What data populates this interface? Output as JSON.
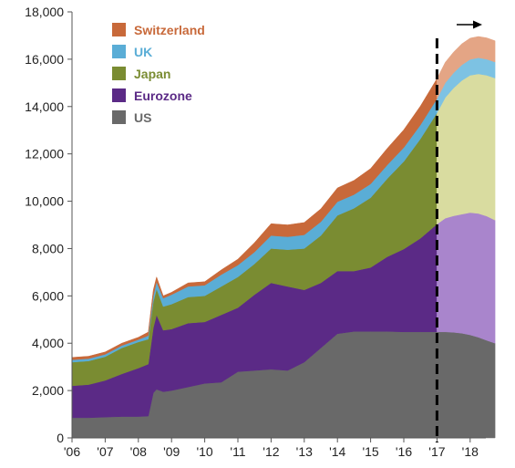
{
  "chart_data": {
    "type": "area",
    "stacked": true,
    "ylim": [
      0,
      18000
    ],
    "yticks": [
      0,
      2000,
      4000,
      6000,
      8000,
      10000,
      12000,
      14000,
      16000,
      18000
    ],
    "ytick_labels": [
      "0",
      "2,000",
      "4,000",
      "6,000",
      "8,000",
      "10,000",
      "12,000",
      "14,000",
      "16,000",
      "18,000"
    ],
    "xlim": [
      2006.0,
      2018.75
    ],
    "xticks": [
      2006,
      2007,
      2008,
      2009,
      2010,
      2011,
      2012,
      2013,
      2014,
      2015,
      2016,
      2017,
      2018
    ],
    "xtick_labels": [
      "'06",
      "'07",
      "'08",
      "'09",
      "'10",
      "'11",
      "'12",
      "'13",
      "'14",
      "'15",
      "'16",
      "'17",
      "'18"
    ],
    "grid": false,
    "legend_position": "top-left",
    "forecast_start": 2017.0,
    "forecast_arrow": true,
    "x": [
      2006.0,
      2006.5,
      2007.0,
      2007.5,
      2008.0,
      2008.3,
      2008.45,
      2008.55,
      2008.75,
      2009.0,
      2009.5,
      2010.0,
      2010.5,
      2011.0,
      2011.5,
      2012.0,
      2012.5,
      2013.0,
      2013.5,
      2014.0,
      2014.5,
      2015.0,
      2015.5,
      2016.0,
      2016.5,
      2017.0,
      2017.25,
      2017.5,
      2017.75,
      2018.0,
      2018.25,
      2018.5,
      2018.75
    ],
    "series": [
      {
        "name": "US",
        "color_actual": "#696969",
        "color_forecast": "#696969",
        "values": [
          850,
          850,
          880,
          900,
          900,
          920,
          1900,
          2050,
          1950,
          2000,
          2150,
          2300,
          2350,
          2800,
          2850,
          2900,
          2850,
          3200,
          3800,
          4400,
          4500,
          4500,
          4500,
          4480,
          4480,
          4480,
          4480,
          4460,
          4420,
          4350,
          4250,
          4120,
          4000
        ]
      },
      {
        "name": "Eurozone",
        "color_actual": "#5b2a86",
        "color_forecast": "#a985cc",
        "values": [
          1350,
          1400,
          1550,
          1800,
          2050,
          2200,
          2750,
          3150,
          2600,
          2600,
          2700,
          2600,
          2850,
          2700,
          3200,
          3650,
          3550,
          3050,
          2750,
          2650,
          2550,
          2700,
          3150,
          3500,
          3950,
          4550,
          4800,
          4920,
          5030,
          5170,
          5230,
          5250,
          5200
        ]
      },
      {
        "name": "Japan",
        "color_actual": "#7a8c32",
        "color_forecast": "#d9dca0",
        "values": [
          1000,
          1000,
          1000,
          1100,
          1100,
          1050,
          1100,
          1100,
          1000,
          1050,
          1100,
          1100,
          1200,
          1300,
          1300,
          1450,
          1550,
          1750,
          2000,
          2350,
          2650,
          2950,
          3300,
          3700,
          4200,
          4700,
          5100,
          5400,
          5650,
          5800,
          5900,
          5950,
          6000
        ]
      },
      {
        "name": "UK",
        "color_actual": "#5aadd6",
        "color_forecast": "#7dc2e3",
        "values": [
          100,
          100,
          100,
          100,
          100,
          150,
          250,
          300,
          350,
          400,
          450,
          450,
          500,
          500,
          500,
          550,
          550,
          580,
          580,
          580,
          580,
          580,
          580,
          590,
          590,
          600,
          620,
          640,
          660,
          670,
          680,
          680,
          680
        ]
      },
      {
        "name": "Switzerland",
        "color_actual": "#c8693a",
        "color_forecast": "#e4a585",
        "values": [
          100,
          100,
          100,
          100,
          100,
          150,
          250,
          200,
          100,
          100,
          150,
          150,
          200,
          250,
          400,
          500,
          500,
          520,
          550,
          580,
          600,
          650,
          700,
          750,
          800,
          850,
          870,
          880,
          890,
          900,
          900,
          900,
          900
        ]
      }
    ]
  }
}
